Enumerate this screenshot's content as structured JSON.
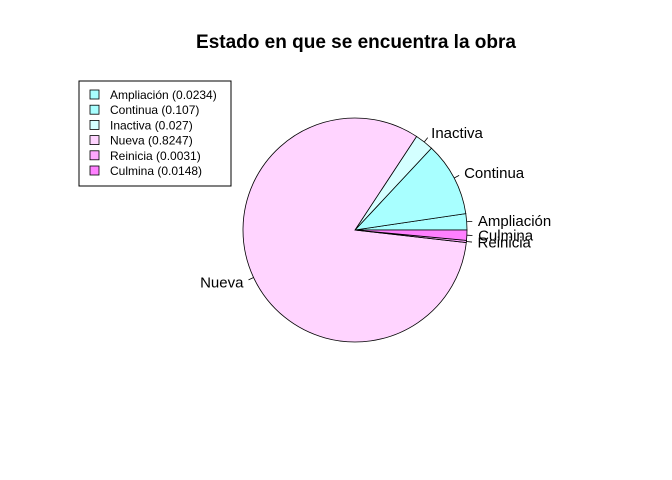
{
  "chart_data": {
    "type": "pie",
    "title": "Estado en que se encuentra la obra",
    "slices": [
      {
        "label": "Ampliación",
        "value": 0.0234,
        "color": "#A8FFFF"
      },
      {
        "label": "Continua",
        "value": 0.107,
        "color": "#A8FFFF"
      },
      {
        "label": "Inactiva",
        "value": 0.027,
        "color": "#D4FFFF"
      },
      {
        "label": "Nueva",
        "value": 0.8247,
        "color": "#FFD4FF"
      },
      {
        "label": "Reinicia",
        "value": 0.0031,
        "color": "#FFA8FF"
      },
      {
        "label": "Culmina",
        "value": 0.0148,
        "color": "#FF80FF"
      }
    ],
    "legend": {
      "placement": "top-left",
      "entries": [
        "Ampliación (0.0234)",
        "Continua (0.107)",
        "Inactiva (0.027)",
        "Nueva (0.8247)",
        "Reinicia (0.0031)",
        "Culmina (0.0148)"
      ]
    }
  }
}
